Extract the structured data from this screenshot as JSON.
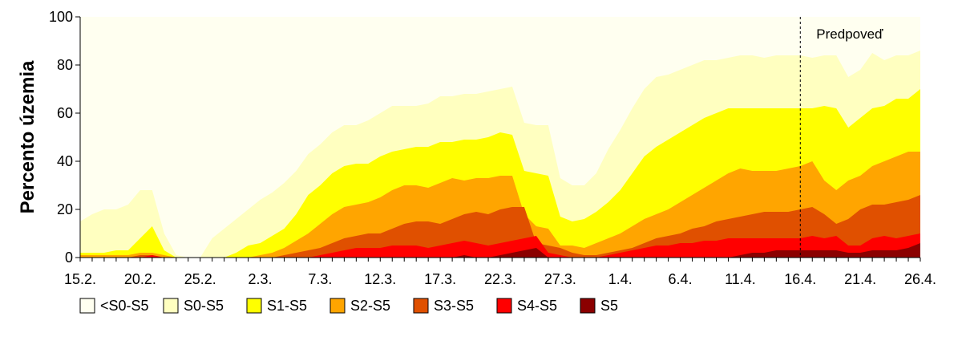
{
  "chart_data": {
    "type": "area",
    "title": "",
    "xlabel": "",
    "ylabel": "Percento územia",
    "ylim": [
      0,
      100
    ],
    "yticks": [
      0,
      20,
      40,
      60,
      80,
      100
    ],
    "x_start_day": 0,
    "x_end_day": 70,
    "x_tick_labels": [
      {
        "day": 0,
        "label": "15.2."
      },
      {
        "day": 5,
        "label": "20.2."
      },
      {
        "day": 10,
        "label": "25.2."
      },
      {
        "day": 15,
        "label": "2.3."
      },
      {
        "day": 20,
        "label": "7.3."
      },
      {
        "day": 25,
        "label": "12.3."
      },
      {
        "day": 30,
        "label": "17.3."
      },
      {
        "day": 35,
        "label": "22.3."
      },
      {
        "day": 40,
        "label": "27.3."
      },
      {
        "day": 45,
        "label": "1.4."
      },
      {
        "day": 50,
        "label": "6.4."
      },
      {
        "day": 55,
        "label": "11.4."
      },
      {
        "day": 60,
        "label": "16.4."
      },
      {
        "day": 65,
        "label": "21.4."
      },
      {
        "day": 70,
        "label": "26.4."
      }
    ],
    "forecast_start_day": 60,
    "annotation": "Predpoveď",
    "series_note": "Cumulative percentages (top of each band)",
    "series": [
      {
        "name": "<S0-S5",
        "color": "#fffff0",
        "values": [
          100,
          100,
          100,
          100,
          100,
          100,
          100,
          100,
          100,
          100,
          100,
          100,
          100,
          100,
          100,
          100,
          100,
          100,
          100,
          100,
          100,
          100,
          100,
          100,
          100,
          100,
          100,
          100,
          100,
          100,
          100,
          100,
          100,
          100,
          100,
          100,
          100,
          100,
          100,
          100,
          100,
          100,
          100,
          100,
          100,
          100,
          100,
          100,
          100,
          100,
          100,
          100,
          100,
          100,
          100,
          100,
          100,
          100,
          100,
          100,
          100,
          100,
          100,
          100,
          100,
          100,
          100,
          100,
          100,
          100,
          100
        ]
      },
      {
        "name": "S0-S5",
        "color": "#ffffc0",
        "values": [
          15,
          18,
          20,
          20,
          22,
          28,
          28,
          10,
          1,
          0,
          0,
          8,
          12,
          16,
          20,
          24,
          27,
          31,
          36,
          43,
          47,
          52,
          55,
          55,
          57,
          60,
          63,
          63,
          63,
          64,
          67,
          67,
          68,
          68,
          69,
          70,
          71,
          56,
          55,
          55,
          33,
          30,
          30,
          35,
          45,
          53,
          62,
          70,
          75,
          76,
          78,
          80,
          82,
          82,
          83,
          84,
          84,
          83,
          84,
          84,
          84,
          83,
          84,
          84,
          75,
          78,
          85,
          82,
          84,
          84,
          86
        ]
      },
      {
        "name": "S1-S5",
        "color": "#ffff00",
        "values": [
          2,
          2,
          2,
          3,
          3,
          8,
          13,
          3,
          0,
          0,
          0,
          0,
          0,
          2,
          5,
          6,
          9,
          12,
          18,
          26,
          30,
          35,
          38,
          39,
          39,
          42,
          44,
          45,
          46,
          46,
          48,
          48,
          49,
          49,
          50,
          52,
          51,
          36,
          35,
          34,
          17,
          15,
          16,
          19,
          23,
          28,
          35,
          42,
          46,
          49,
          52,
          55,
          58,
          60,
          62,
          62,
          62,
          62,
          62,
          62,
          62,
          62,
          63,
          62,
          54,
          58,
          62,
          63,
          66,
          66,
          70
        ]
      },
      {
        "name": "S2-S5",
        "color": "#ffa500",
        "values": [
          1,
          1,
          1,
          1,
          1,
          2,
          2,
          1,
          0,
          0,
          0,
          0,
          0,
          0,
          0,
          1,
          2,
          4,
          7,
          10,
          14,
          18,
          21,
          22,
          23,
          25,
          28,
          30,
          30,
          29,
          31,
          33,
          32,
          33,
          33,
          34,
          34,
          18,
          13,
          12,
          5,
          5,
          4,
          6,
          8,
          10,
          13,
          16,
          18,
          20,
          23,
          26,
          29,
          32,
          35,
          37,
          36,
          36,
          36,
          37,
          38,
          40,
          32,
          28,
          32,
          34,
          38,
          40,
          42,
          44,
          44
        ]
      },
      {
        "name": "S3-S5",
        "color": "#e05000",
        "values": [
          0,
          0,
          0,
          0,
          0,
          1,
          1,
          0,
          0,
          0,
          0,
          0,
          0,
          0,
          0,
          0,
          0,
          1,
          2,
          3,
          4,
          6,
          8,
          9,
          10,
          10,
          12,
          14,
          15,
          15,
          14,
          16,
          18,
          19,
          18,
          20,
          21,
          21,
          6,
          5,
          4,
          2,
          1,
          1,
          2,
          3,
          4,
          6,
          8,
          9,
          10,
          12,
          13,
          15,
          16,
          17,
          18,
          19,
          19,
          19,
          20,
          21,
          18,
          14,
          16,
          20,
          22,
          22,
          23,
          24,
          26
        ]
      },
      {
        "name": "S4-S5",
        "color": "#ff0000",
        "values": [
          0,
          0,
          0,
          0,
          0,
          0,
          1,
          0,
          0,
          0,
          0,
          0,
          0,
          0,
          0,
          0,
          0,
          0,
          0,
          0,
          1,
          2,
          3,
          4,
          4,
          4,
          5,
          5,
          5,
          4,
          5,
          6,
          7,
          6,
          5,
          6,
          7,
          8,
          9,
          2,
          1,
          0,
          0,
          0,
          1,
          2,
          3,
          4,
          5,
          5,
          6,
          6,
          7,
          7,
          8,
          8,
          8,
          8,
          8,
          8,
          8,
          9,
          8,
          9,
          5,
          5,
          8,
          9,
          8,
          9,
          10
        ]
      },
      {
        "name": "S5",
        "color": "#8b0000",
        "values": [
          0,
          0,
          0,
          0,
          0,
          0,
          0,
          0,
          0,
          0,
          0,
          0,
          0,
          0,
          0,
          0,
          0,
          0,
          0,
          0,
          0,
          0,
          0,
          0,
          0,
          0,
          0,
          0,
          0,
          0,
          0,
          0,
          1,
          0,
          0,
          1,
          2,
          3,
          4,
          0,
          0,
          0,
          0,
          0,
          0,
          0,
          0,
          0,
          0,
          0,
          0,
          0,
          0,
          0,
          0,
          1,
          2,
          2,
          3,
          3,
          3,
          3,
          3,
          3,
          2,
          2,
          3,
          3,
          3,
          4,
          6
        ]
      }
    ],
    "legend": {
      "position": "bottom-left",
      "items": [
        "<S0-S5",
        "S0-S5",
        "S1-S5",
        "S2-S5",
        "S3-S5",
        "S4-S5",
        "S5"
      ]
    }
  }
}
